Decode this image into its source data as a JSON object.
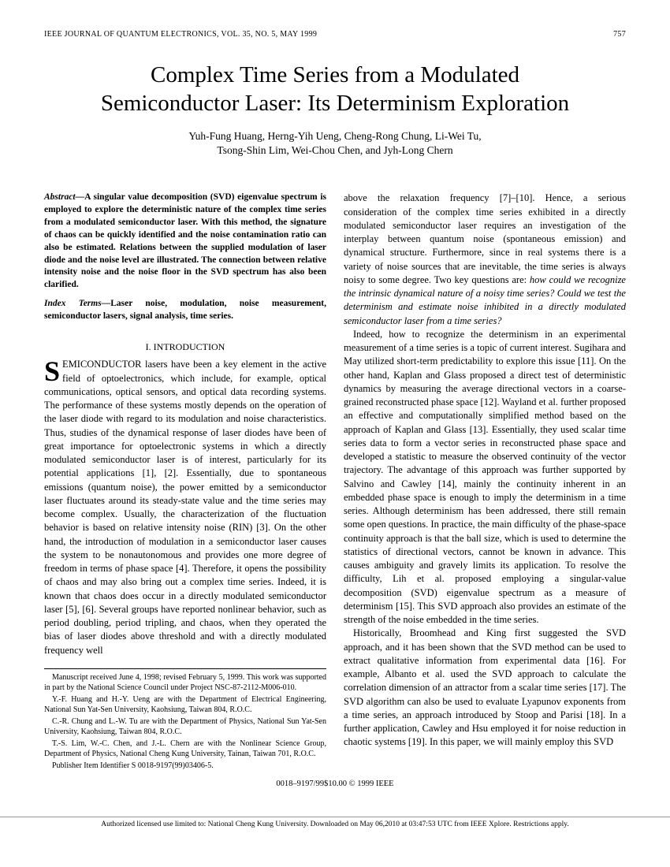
{
  "header": {
    "journal": "IEEE JOURNAL OF QUANTUM ELECTRONICS, VOL. 35, NO. 5, MAY 1999",
    "page": "757"
  },
  "title": {
    "line1": "Complex Time Series from a Modulated",
    "line2": "Semiconductor Laser: Its Determinism Exploration"
  },
  "authors": {
    "line1": "Yuh-Fung Huang, Herng-Yih Ueng, Cheng-Rong Chung, Li-Wei Tu,",
    "line2": "Tsong-Shin Lim, Wei-Chou Chen, and Jyh-Long Chern"
  },
  "abstract": {
    "label": "Abstract—",
    "text": "A singular value decomposition (SVD) eigenvalue spectrum is employed to explore the deterministic nature of the complex time series from a modulated semiconductor laser. With this method, the signature of chaos can be quickly identified and the noise contamination ratio can also be estimated. Relations between the supplied modulation of laser diode and the noise level are illustrated. The connection between relative intensity noise and the noise floor in the SVD spectrum has also been clarified."
  },
  "indexTerms": {
    "label": "Index Terms—",
    "text": "Laser noise, modulation, noise measurement, semiconductor lasers, signal analysis, time series."
  },
  "section1": {
    "heading": "I. INTRODUCTION",
    "dropcap": "S",
    "para1_after_drop": "EMICONDUCTOR lasers have been a key element in the active field of optoelectronics, which include, for example, optical communications, optical sensors, and optical data recording systems. The performance of these systems mostly depends on the operation of the laser diode with regard to its modulation and noise characteristics. Thus, studies of the dynamical response of laser diodes have been of great importance for optoelectronic systems in which a directly modulated semiconductor laser is of interest, particularly for its potential applications [1], [2]. Essentially, due to spontaneous emissions (quantum noise), the power emitted by a semiconductor laser fluctuates around its steady-state value and the time series may become complex. Usually, the characterization of the fluctuation behavior is based on relative intensity noise (RIN) [3]. On the other hand, the introduction of modulation in a semiconductor laser causes the system to be nonautonomous and provides one more degree of freedom in terms of phase space [4]. Therefore, it opens the possibility of chaos and may also bring out a complex time series. Indeed, it is known that chaos does occur in a directly modulated semiconductor laser [5], [6]. Several groups have reported nonlinear behavior, such as period doubling, period tripling, and chaos, when they operated the bias of laser diodes above threshold and with a directly modulated frequency well"
  },
  "col2": {
    "para1": "above the relaxation frequency [7]–[10]. Hence, a serious consideration of the complex time series exhibited in a directly modulated semiconductor laser requires an investigation of the interplay between quantum noise (spontaneous emission) and dynamical structure. Furthermore, since in real systems there is a variety of noise sources that are inevitable, the time series is always noisy to some degree. Two key questions are: ",
    "para1_em": "how could we recognize the intrinsic dynamical nature of a noisy time series? Could we test the determinism and estimate noise inhibited in a directly modulated semiconductor laser from a time series?",
    "para2": "Indeed, how to recognize the determinism in an experimental measurement of a time series is a topic of current interest. Sugihara and May utilized short-term predictability to explore this issue [11]. On the other hand, Kaplan and Glass proposed a direct test of deterministic dynamics by measuring the average directional vectors in a coarse-grained reconstructed phase space [12]. Wayland et al. further proposed an effective and computationally simplified method based on the approach of Kaplan and Glass [13]. Essentially, they used scalar time series data to form a vector series in reconstructed phase space and developed a statistic to measure the observed continuity of the vector trajectory. The advantage of this approach was further supported by Salvino and Cawley [14], mainly the continuity inherent in an embedded phase space is enough to imply the determinism in a time series. Although determinism has been addressed, there still remain some open questions. In practice, the main difficulty of the phase-space continuity approach is that the ball size, which is used to determine the statistics of directional vectors, cannot be known in advance. This causes ambiguity and gravely limits its application. To resolve the difficulty, Lih et al. proposed employing a singular-value decomposition (SVD) eigenvalue spectrum as a measure of determinism [15]. This SVD approach also provides an estimate of the strength of the noise embedded in the time series.",
    "para3": "Historically, Broomhead and King first suggested the SVD approach, and it has been shown that the SVD method can be used to extract qualitative information from experimental data [16]. For example, Albanto et al. used the SVD approach to calculate the correlation dimension of an attractor from a scalar time series [17]. The SVD algorithm can also be used to evaluate Lyapunov exponents from a time series, an approach introduced by Stoop and Parisi [18]. In a further application, Cawley and Hsu employed it for noise reduction in chaotic systems [19]. In this paper, we will mainly employ this SVD"
  },
  "footnotes": {
    "f1": "Manuscript received June 4, 1998; revised February 5, 1999. This work was supported in part by the National Science Council under Project NSC-87-2112-M006-010.",
    "f2": "Y.-F. Huang and H.-Y. Ueng are with the Department of Electrical Engineering, National Sun Yat-Sen University, Kaohsiung, Taiwan 804, R.O.C.",
    "f3": "C.-R. Chung and L.-W. Tu are with the Department of Physics, National Sun Yat-Sen University, Kaohsiung, Taiwan 804, R.O.C.",
    "f4": "T.-S. Lim, W.-C. Chen, and J.-L. Chern are with the Nonlinear Science Group, Department of Physics, National Cheng Kung University, Tainan, Taiwan 701, R.O.C.",
    "f5": "Publisher Item Identifier S 0018-9197(99)03406-5."
  },
  "copyright": "0018–9197/99$10.00 © 1999 IEEE",
  "license": "Authorized licensed use limited to: National Cheng Kung University. Downloaded on May 06,2010 at 03:47:53 UTC from IEEE Xplore. Restrictions apply."
}
